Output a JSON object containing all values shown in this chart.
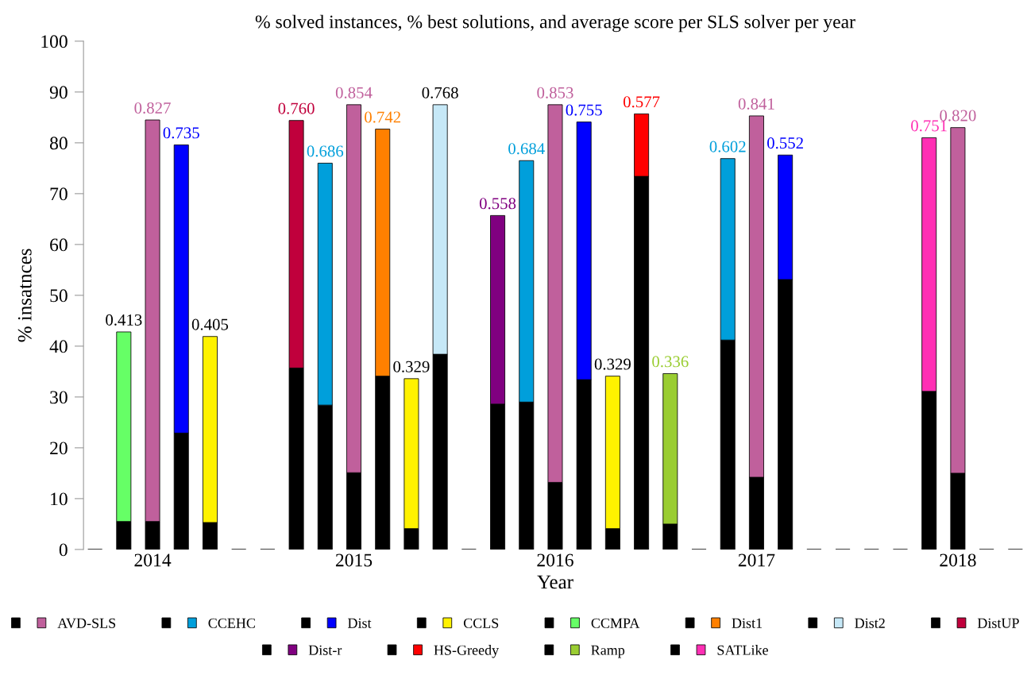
{
  "chart_data": {
    "type": "bar",
    "title": "% solved instances, % best solutions, and average score per SLS solver per year",
    "xlabel": "Year",
    "ylabel": "% insatnces",
    "categories": [
      null,
      null,
      "2014",
      null,
      null,
      null,
      null,
      null,
      null,
      "2015",
      null,
      null,
      null,
      null,
      null,
      null,
      "2016",
      null,
      null,
      null,
      null,
      null,
      null,
      "2017",
      null,
      null,
      null,
      null,
      null,
      null,
      "2018",
      null,
      null
    ],
    "ylim": [
      0,
      100
    ],
    "yticks": [
      0,
      10,
      20,
      30,
      40,
      50,
      60,
      70,
      80,
      90,
      100
    ],
    "grid": false,
    "legend": "bottom",
    "stacked": true,
    "series": [
      {
        "color": "#000000",
        "values": [
          0,
          5.5,
          5.5,
          22.9,
          5.3,
          0,
          0,
          35.7,
          28.4,
          15.1,
          34.1,
          4.1,
          38.4,
          0,
          28.6,
          29.0,
          13.2,
          33.4,
          4.1,
          73.4,
          5.0,
          0,
          41.2,
          14.2,
          53.1,
          0,
          0,
          0,
          0,
          31.1,
          15.0,
          0,
          0
        ]
      },
      {
        "name": "AVD-SLS",
        "color": "#c0609c",
        "values": [
          null,
          null,
          79.0,
          null,
          null,
          null,
          null,
          null,
          null,
          72.4,
          null,
          null,
          null,
          null,
          null,
          null,
          74.3,
          null,
          null,
          null,
          null,
          null,
          null,
          71.1,
          null,
          null,
          null,
          null,
          null,
          null,
          68.0,
          null,
          null
        ]
      },
      {
        "name": "CCEHC",
        "color": "#009fdb",
        "values": [
          null,
          null,
          null,
          null,
          null,
          null,
          null,
          null,
          47.6,
          null,
          null,
          null,
          null,
          null,
          null,
          47.5,
          null,
          null,
          null,
          null,
          null,
          null,
          35.7,
          null,
          null,
          null,
          null,
          null,
          null,
          null,
          null,
          null,
          null
        ]
      },
      {
        "name": "Dist",
        "color": "#0000ff",
        "values": [
          null,
          null,
          null,
          56.7,
          null,
          null,
          null,
          null,
          null,
          null,
          null,
          null,
          null,
          null,
          null,
          null,
          null,
          50.7,
          null,
          null,
          null,
          null,
          null,
          null,
          24.5,
          null,
          null,
          null,
          null,
          null,
          null,
          null,
          null
        ]
      },
      {
        "name": "CCLS",
        "color": "#fff200",
        "values": [
          null,
          null,
          null,
          null,
          36.6,
          null,
          null,
          null,
          null,
          null,
          null,
          29.5,
          null,
          null,
          null,
          null,
          null,
          null,
          30.0,
          null,
          null,
          null,
          null,
          null,
          null,
          null,
          null,
          null,
          null,
          null,
          null,
          null,
          null
        ]
      },
      {
        "name": "CCMPA",
        "color": "#66ff66",
        "values": [
          null,
          37.3,
          null,
          null,
          null,
          null,
          null,
          null,
          null,
          null,
          null,
          null,
          null,
          null,
          null,
          null,
          null,
          null,
          null,
          null,
          null,
          null,
          null,
          null,
          null,
          null,
          null,
          null,
          null,
          null,
          null,
          null,
          null
        ]
      },
      {
        "name": "Dist1",
        "color": "#ff8000",
        "values": [
          null,
          null,
          null,
          null,
          null,
          null,
          null,
          null,
          null,
          null,
          48.6,
          null,
          null,
          null,
          null,
          null,
          null,
          null,
          null,
          null,
          null,
          null,
          null,
          null,
          null,
          null,
          null,
          null,
          null,
          null,
          null,
          null,
          null
        ]
      },
      {
        "name": "Dist2",
        "color": "#c6e8f7",
        "values": [
          null,
          null,
          null,
          null,
          null,
          null,
          null,
          null,
          null,
          null,
          null,
          null,
          49.1,
          null,
          null,
          null,
          null,
          null,
          null,
          null,
          null,
          null,
          null,
          null,
          null,
          null,
          null,
          null,
          null,
          null,
          null,
          null,
          null
        ]
      },
      {
        "name": "DistUP",
        "color": "#c0003c",
        "values": [
          null,
          null,
          null,
          null,
          null,
          null,
          null,
          48.7,
          null,
          null,
          null,
          null,
          null,
          null,
          null,
          null,
          null,
          null,
          null,
          null,
          null,
          null,
          null,
          null,
          null,
          null,
          null,
          null,
          null,
          null,
          null,
          null,
          null
        ]
      },
      {
        "name": "Dist-r",
        "color": "#800080",
        "values": [
          null,
          null,
          null,
          null,
          null,
          null,
          null,
          null,
          null,
          null,
          null,
          null,
          null,
          null,
          37.1,
          null,
          null,
          null,
          null,
          null,
          null,
          null,
          null,
          null,
          null,
          null,
          null,
          null,
          null,
          null,
          null,
          null,
          null
        ]
      },
      {
        "name": "HS-Greedy",
        "color": "#ff0000",
        "values": [
          null,
          null,
          null,
          null,
          null,
          null,
          null,
          null,
          null,
          null,
          null,
          null,
          null,
          null,
          null,
          null,
          null,
          null,
          null,
          12.3,
          null,
          null,
          null,
          null,
          null,
          null,
          null,
          null,
          null,
          null,
          null,
          null,
          null
        ]
      },
      {
        "name": "Ramp",
        "color": "#9acd32",
        "values": [
          null,
          null,
          null,
          null,
          null,
          null,
          null,
          null,
          null,
          null,
          null,
          null,
          null,
          null,
          null,
          null,
          null,
          null,
          null,
          null,
          29.6,
          null,
          null,
          null,
          null,
          null,
          null,
          null,
          null,
          null,
          null,
          null,
          null
        ]
      },
      {
        "name": "SATLike",
        "color": "#ff2fb4",
        "values": [
          null,
          null,
          null,
          null,
          null,
          null,
          null,
          null,
          null,
          null,
          null,
          null,
          null,
          null,
          null,
          null,
          null,
          null,
          null,
          null,
          null,
          null,
          null,
          null,
          null,
          null,
          null,
          null,
          null,
          49.9,
          null,
          null,
          null
        ]
      }
    ],
    "annotations": [
      "0.413",
      "0.827",
      "0.735",
      "0.405",
      "0.760",
      "0.686",
      "0.854",
      "0.742",
      "0.329",
      "0.768",
      "0.558",
      "0.684",
      "0.853",
      "0.755",
      "0.329",
      "0.577",
      "0.336",
      "0.602",
      "0.841",
      "0.552",
      "0.751",
      "0.820"
    ]
  }
}
